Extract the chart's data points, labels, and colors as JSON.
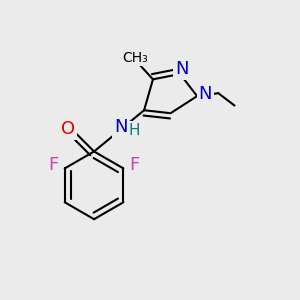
{
  "background_color": "#ebebeb",
  "bond_color": "#000000",
  "bond_width": 1.5,
  "figsize": [
    3.0,
    3.0
  ],
  "dpi": 100,
  "xlim": [
    0,
    10
  ],
  "ylim": [
    0,
    10
  ]
}
